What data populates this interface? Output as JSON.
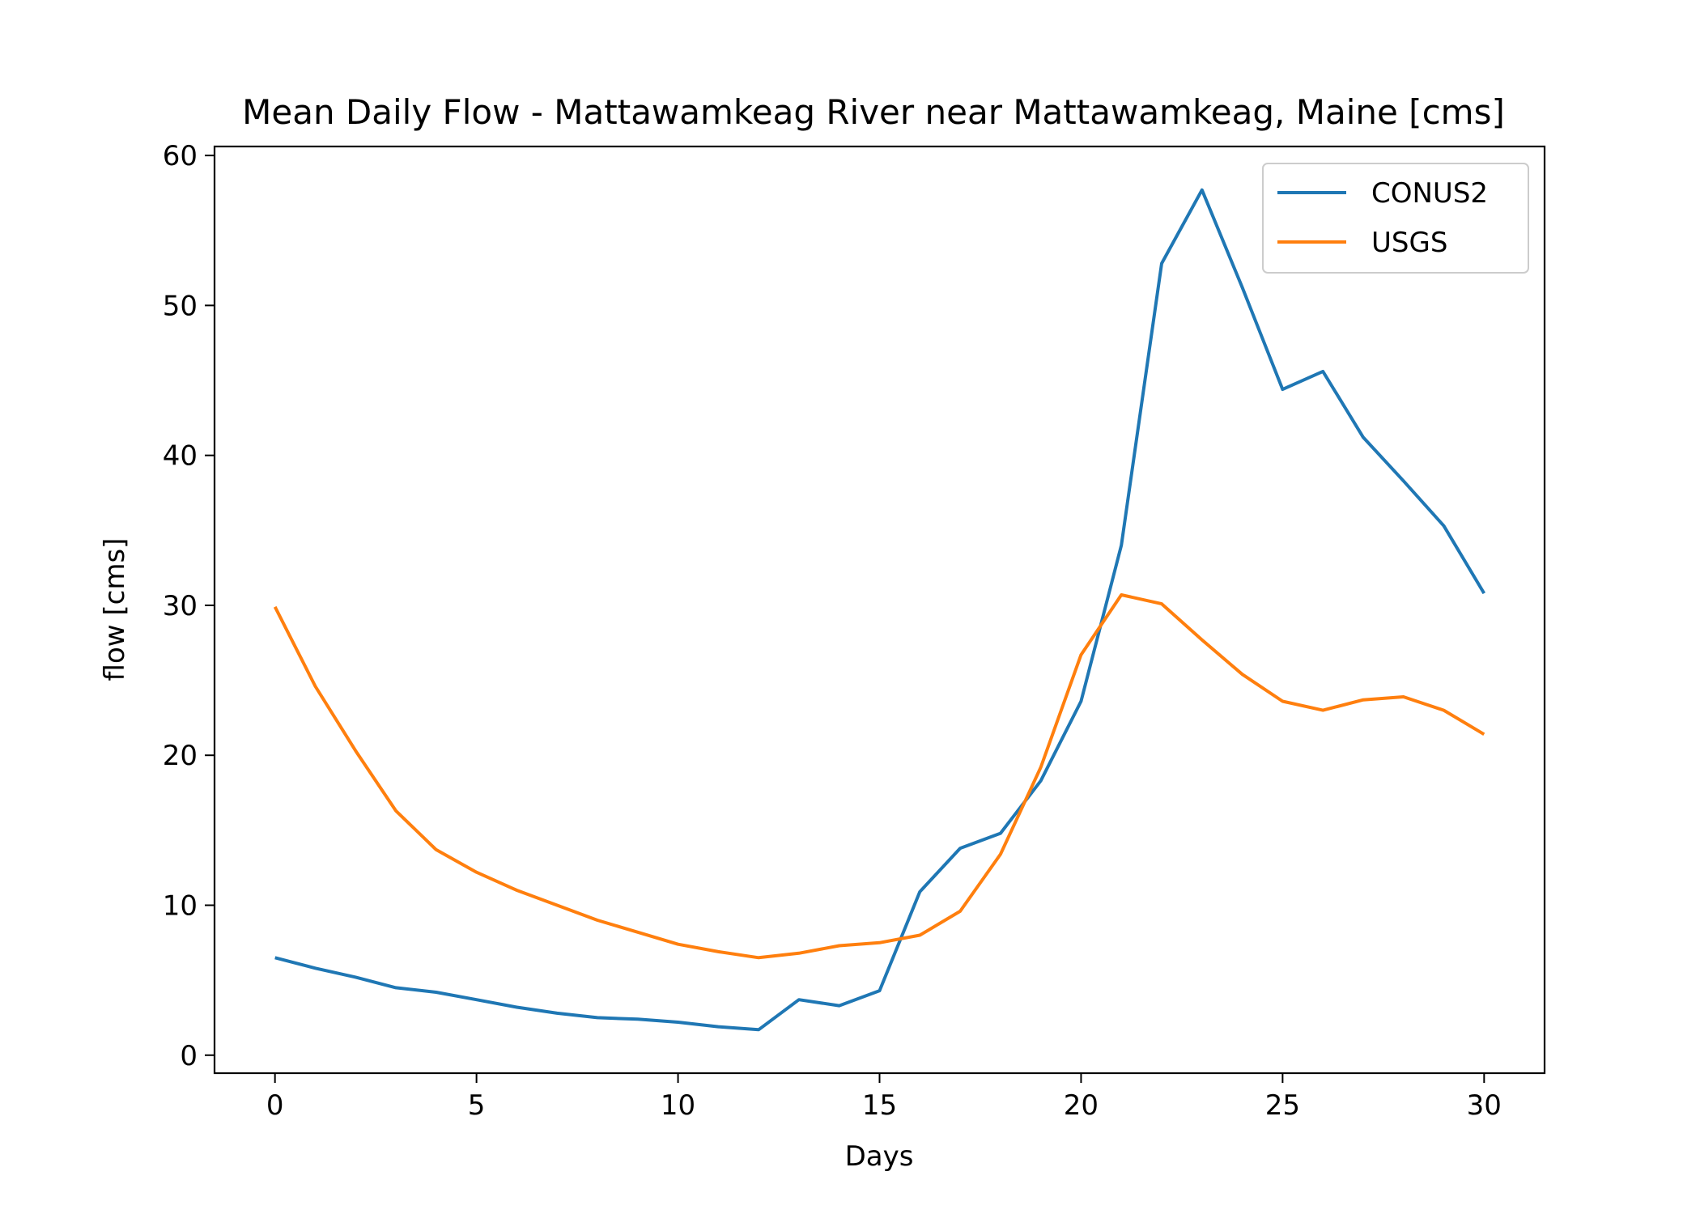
{
  "chart_data": {
    "type": "line",
    "title": "Mean Daily Flow - Mattawamkeag River near Mattawamkeag, Maine [cms]",
    "xlabel": "Days",
    "ylabel": "flow [cms]",
    "xlim": [
      -1.5,
      31.5
    ],
    "ylim": [
      -1.2,
      60.6
    ],
    "xticks": [
      0,
      5,
      10,
      15,
      20,
      25,
      30
    ],
    "yticks": [
      0,
      10,
      20,
      30,
      40,
      50,
      60
    ],
    "grid": false,
    "legend_position": "top-right",
    "x": [
      0,
      1,
      2,
      3,
      4,
      5,
      6,
      7,
      8,
      9,
      10,
      11,
      12,
      13,
      14,
      15,
      16,
      17,
      18,
      19,
      20,
      21,
      22,
      23,
      24,
      25,
      26,
      27,
      28,
      29,
      30
    ],
    "series": [
      {
        "name": "CONUS2",
        "color": "#1f77b4",
        "values": [
          6.5,
          5.8,
          5.2,
          4.5,
          4.2,
          3.7,
          3.2,
          2.8,
          2.5,
          2.4,
          2.2,
          1.9,
          1.7,
          3.7,
          3.3,
          4.3,
          10.9,
          13.8,
          14.8,
          18.3,
          23.6,
          34.0,
          52.8,
          57.7,
          51.2,
          44.4,
          45.6,
          41.2,
          38.3,
          35.3,
          30.8
        ]
      },
      {
        "name": "USGS",
        "color": "#ff7f0e",
        "values": [
          29.9,
          24.6,
          20.3,
          16.3,
          13.7,
          12.2,
          11.0,
          10.0,
          9.0,
          8.2,
          7.4,
          6.9,
          6.5,
          6.8,
          7.3,
          7.5,
          8.0,
          9.6,
          13.4,
          19.2,
          26.7,
          30.7,
          30.1,
          27.7,
          25.4,
          23.6,
          23.0,
          23.7,
          23.9,
          23.0,
          21.4
        ]
      }
    ]
  }
}
